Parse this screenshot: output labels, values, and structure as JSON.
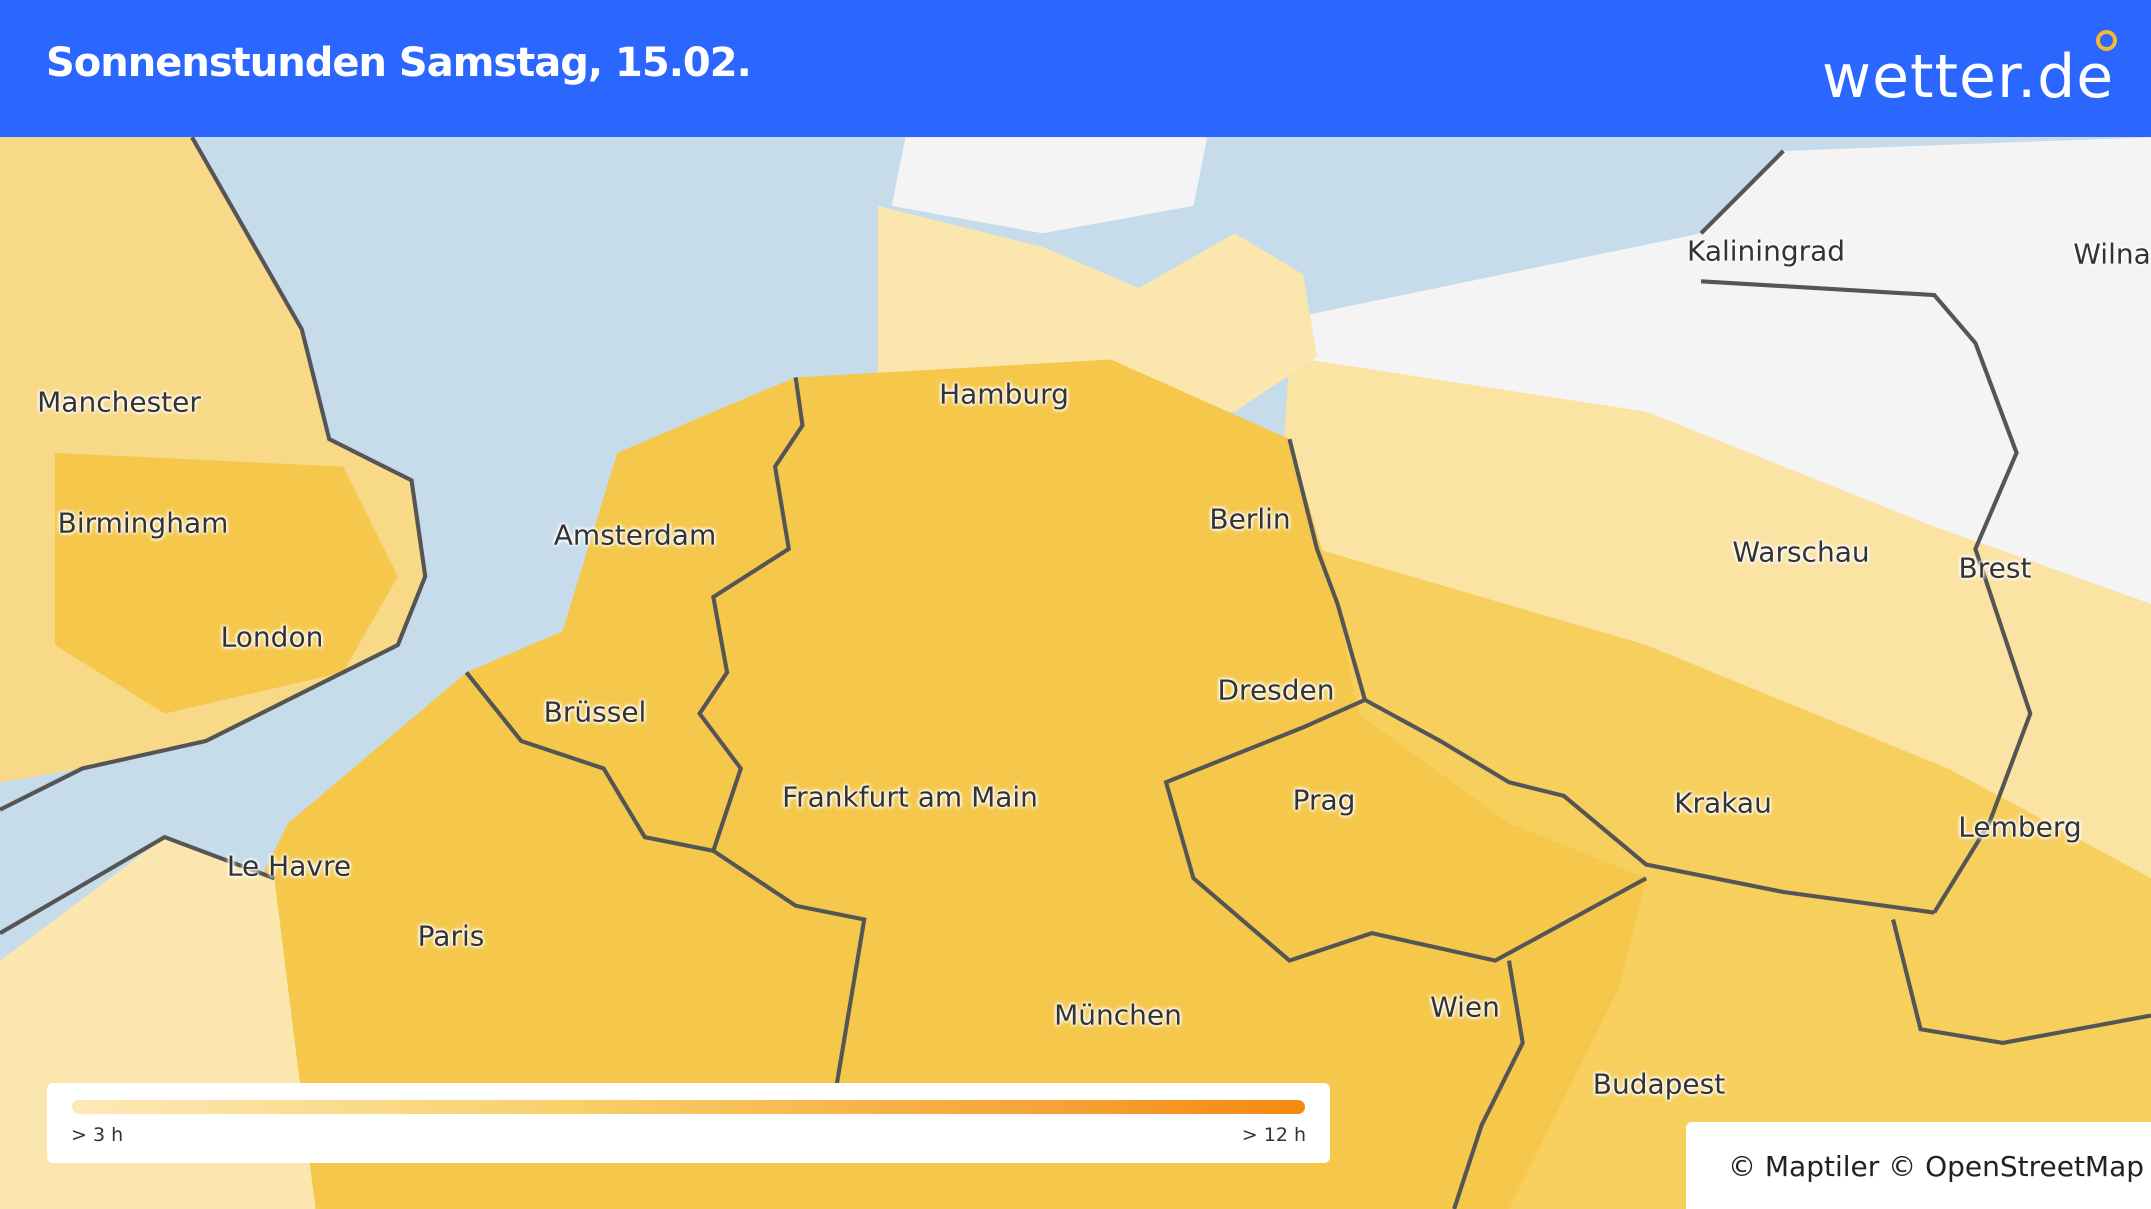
{
  "header": {
    "title": "Sonnenstunden Samstag, 15.02.",
    "logo": "wetter.de"
  },
  "map": {
    "colors": {
      "sea": "#c6dcea",
      "low_sun": "#fde9b8",
      "mid_sun": "#f5c84c",
      "no_data": "#f4f4f4",
      "border": "#555555",
      "header": "#2b67ff"
    },
    "cities": [
      "Hamburg",
      "Manchester",
      "Birmingham",
      "London",
      "Amsterdam",
      "Berlin",
      "Kaliningrad",
      "Wilna",
      "Warschau",
      "Brest",
      "Dresden",
      "Brüssel",
      "Frankfurt am Main",
      "Prag",
      "Krakau",
      "Lemberg",
      "Le Havre",
      "Paris",
      "München",
      "Wien",
      "Budapest"
    ]
  },
  "legend": {
    "min_label": "> 3 h",
    "max_label": "> 12 h"
  },
  "attribution": "© Maptiler © OpenStreetMap"
}
